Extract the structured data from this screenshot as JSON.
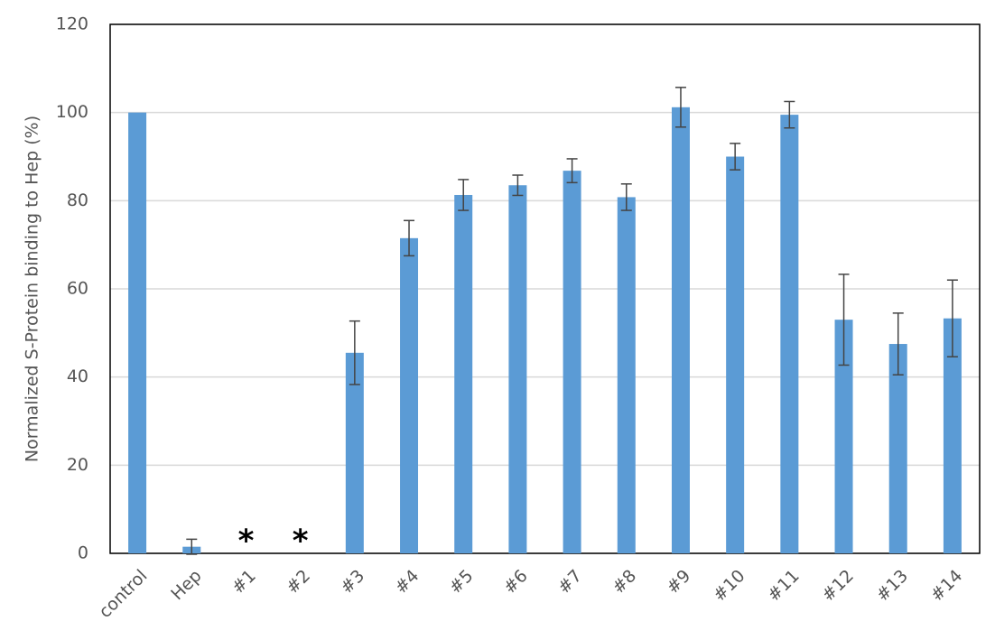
{
  "chart_data": {
    "type": "bar",
    "y_label": "Normalized S-Protein binding to Hep  (%)",
    "categories": [
      "control",
      "Hep",
      "#1",
      "#2",
      "#3",
      "#4",
      "#5",
      "#6",
      "#7",
      "#8",
      "#9",
      "#10",
      "#11",
      "#12",
      "#13",
      "#14"
    ],
    "values": [
      100,
      1.5,
      null,
      null,
      45.5,
      71.5,
      81.3,
      83.5,
      86.8,
      80.8,
      101.2,
      90,
      99.5,
      53,
      47.5,
      53.3
    ],
    "errors": [
      null,
      1.7,
      null,
      null,
      7.2,
      4,
      3.5,
      2.3,
      2.7,
      3,
      4.5,
      3,
      3,
      10.3,
      7,
      8.7
    ],
    "color": "#5b9bd5",
    "annotations": [
      {
        "category": "#1",
        "text": "*"
      },
      {
        "category": "#2",
        "text": "*"
      }
    ],
    "ylim": [
      0,
      120
    ],
    "yticks": [
      0,
      20,
      40,
      60,
      80,
      100,
      120
    ],
    "grid": true
  }
}
